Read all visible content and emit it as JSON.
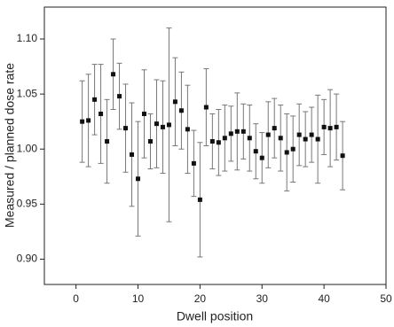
{
  "chart_data": {
    "type": "scatter",
    "x_label": "Dwell position",
    "y_label": "Measured / planned dose rate",
    "color": "#111111",
    "error_color": "#777777",
    "x": [
      1,
      2,
      3,
      4,
      5,
      6,
      7,
      8,
      9,
      10,
      11,
      12,
      13,
      14,
      15,
      16,
      17,
      18,
      19,
      20,
      21,
      22,
      23,
      24,
      25,
      26,
      27,
      28,
      29,
      30,
      31,
      32,
      33,
      34,
      35,
      36,
      37,
      38,
      39,
      40,
      41,
      42,
      43
    ],
    "values": [
      1.025,
      1.026,
      1.045,
      1.032,
      1.007,
      1.068,
      1.048,
      1.019,
      0.995,
      0.973,
      1.032,
      1.007,
      1.023,
      1.02,
      1.022,
      1.043,
      1.035,
      1.018,
      0.987,
      0.954,
      1.038,
      1.007,
      1.006,
      1.01,
      1.014,
      1.016,
      1.016,
      1.01,
      0.998,
      0.992,
      1.013,
      1.019,
      1.01,
      0.997,
      1.0,
      1.013,
      1.009,
      1.013,
      1.009,
      1.02,
      1.019,
      1.02,
      0.994
    ],
    "errors": [
      0.037,
      0.042,
      0.032,
      0.045,
      0.038,
      0.032,
      0.03,
      0.04,
      0.047,
      0.052,
      0.04,
      0.025,
      0.04,
      0.042,
      0.088,
      0.04,
      0.035,
      0.04,
      0.03,
      0.052,
      0.035,
      0.025,
      0.03,
      0.03,
      0.025,
      0.035,
      0.025,
      0.03,
      0.025,
      0.023,
      0.03,
      0.027,
      0.03,
      0.035,
      0.03,
      0.028,
      0.025,
      0.025,
      0.04,
      0.025,
      0.035,
      0.03,
      0.031
    ],
    "xlim": [
      -5.1,
      50
    ],
    "ylim": [
      0.877,
      1.129
    ],
    "xticks": [
      0,
      10,
      20,
      30,
      40,
      50
    ],
    "yticks": [
      {
        "value": 0.9,
        "label": "0.90"
      },
      0.95,
      {
        "value": 1.0,
        "label": "1.00"
      },
      1.05,
      {
        "value": 1.1,
        "label": "1.10"
      }
    ]
  }
}
